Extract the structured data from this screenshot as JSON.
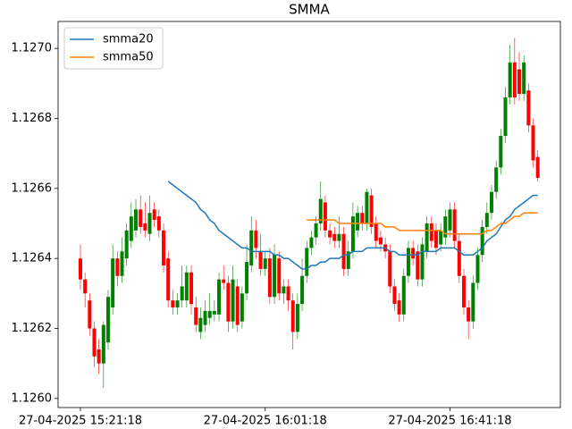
{
  "chart_data": {
    "type": "candlestick",
    "title": "SMMA",
    "up_color": "#008000",
    "down_color": "#ff0000",
    "legend": "upper left",
    "x": [
      "27-04-2025 15:21:18",
      "27-04-2025 15:22:18",
      "27-04-2025 15:23:18",
      "27-04-2025 15:24:18",
      "27-04-2025 15:25:18",
      "27-04-2025 15:26:18",
      "27-04-2025 15:27:18",
      "27-04-2025 15:28:18",
      "27-04-2025 15:29:18",
      "27-04-2025 15:30:18",
      "27-04-2025 15:31:18",
      "27-04-2025 15:32:18",
      "27-04-2025 15:33:18",
      "27-04-2025 15:34:18",
      "27-04-2025 15:35:18",
      "27-04-2025 15:36:18",
      "27-04-2025 15:37:18",
      "27-04-2025 15:38:18",
      "27-04-2025 15:39:18",
      "27-04-2025 15:40:18",
      "27-04-2025 15:41:18",
      "27-04-2025 15:42:18",
      "27-04-2025 15:43:18",
      "27-04-2025 15:44:18",
      "27-04-2025 15:45:18",
      "27-04-2025 15:46:18",
      "27-04-2025 15:47:18",
      "27-04-2025 15:48:18",
      "27-04-2025 15:49:18",
      "27-04-2025 15:50:18",
      "27-04-2025 15:51:18",
      "27-04-2025 15:52:18",
      "27-04-2025 15:53:18",
      "27-04-2025 15:54:18",
      "27-04-2025 15:55:18",
      "27-04-2025 15:56:18",
      "27-04-2025 15:57:18",
      "27-04-2025 15:58:18",
      "27-04-2025 15:59:18",
      "27-04-2025 16:00:18",
      "27-04-2025 16:01:18",
      "27-04-2025 16:02:18",
      "27-04-2025 16:03:18",
      "27-04-2025 16:04:18",
      "27-04-2025 16:05:18",
      "27-04-2025 16:06:18",
      "27-04-2025 16:07:18",
      "27-04-2025 16:08:18",
      "27-04-2025 16:09:18",
      "27-04-2025 16:10:18",
      "27-04-2025 16:11:18",
      "27-04-2025 16:12:18",
      "27-04-2025 16:13:18",
      "27-04-2025 16:14:18",
      "27-04-2025 16:15:18",
      "27-04-2025 16:16:18",
      "27-04-2025 16:17:18",
      "27-04-2025 16:18:18",
      "27-04-2025 16:19:18",
      "27-04-2025 16:20:18",
      "27-04-2025 16:21:18",
      "27-04-2025 16:22:18",
      "27-04-2025 16:23:18",
      "27-04-2025 16:24:18",
      "27-04-2025 16:25:18",
      "27-04-2025 16:26:18",
      "27-04-2025 16:27:18",
      "27-04-2025 16:28:18",
      "27-04-2025 16:29:18",
      "27-04-2025 16:30:18",
      "27-04-2025 16:31:18",
      "27-04-2025 16:32:18",
      "27-04-2025 16:33:18",
      "27-04-2025 16:34:18",
      "27-04-2025 16:35:18",
      "27-04-2025 16:36:18",
      "27-04-2025 16:37:18",
      "27-04-2025 16:38:18",
      "27-04-2025 16:39:18",
      "27-04-2025 16:40:18",
      "27-04-2025 16:41:18",
      "27-04-2025 16:42:18",
      "27-04-2025 16:43:18",
      "27-04-2025 16:44:18",
      "27-04-2025 16:45:18",
      "27-04-2025 16:46:18",
      "27-04-2025 16:47:18",
      "27-04-2025 16:48:18",
      "27-04-2025 16:49:18",
      "27-04-2025 16:50:18",
      "27-04-2025 16:51:18",
      "27-04-2025 16:52:18",
      "27-04-2025 16:53:18",
      "27-04-2025 16:54:18",
      "27-04-2025 16:55:18",
      "27-04-2025 16:56:18",
      "27-04-2025 16:57:18",
      "27-04-2025 16:58:18",
      "27-04-2025 16:59:18",
      "27-04-2025 17:00:18"
    ],
    "open": [
      1.1264,
      1.12634,
      1.12628,
      1.1262,
      1.12614,
      1.1261,
      1.12616,
      1.12626,
      1.1264,
      1.12635,
      1.1264,
      1.12645,
      1.12648,
      1.12654,
      1.1265,
      1.12647,
      1.12654,
      1.12652,
      1.12648,
      1.1264,
      1.12628,
      1.12626,
      1.12628,
      1.12628,
      1.12636,
      1.12626,
      1.12619,
      1.12621,
      1.12623,
      1.12624,
      1.12624,
      1.12634,
      1.12633,
      1.12622,
      1.12632,
      1.12622,
      1.1263,
      1.12638,
      1.12648,
      1.12642,
      1.12637,
      1.1264,
      1.12629,
      1.1264,
      1.1263,
      1.12632,
      1.12628,
      1.12619,
      1.12627,
      1.12635,
      1.12643,
      1.12646,
      1.1265,
      1.12656,
      1.12648,
      1.12647,
      1.12645,
      1.12647,
      1.12637,
      1.12642,
      1.12648,
      1.12653,
      1.1265,
      1.12658,
      1.1265,
      1.12646,
      1.12644,
      1.12642,
      1.12632,
      1.12628,
      1.12624,
      1.12635,
      1.12643,
      1.12642,
      1.12634,
      1.12642,
      1.1265,
      1.12648,
      1.12644,
      1.12646,
      1.12648,
      1.12654,
      1.12645,
      1.12635,
      1.12626,
      1.12622,
      1.12633,
      1.12641,
      1.12649,
      1.12653,
      1.12659,
      1.12666,
      1.12675,
      1.12686,
      1.12696,
      1.12694,
      1.12687,
      1.12688,
      1.12678,
      1.12669
    ],
    "high": [
      1.12644,
      1.12636,
      1.1263,
      1.12622,
      1.12617,
      1.12622,
      1.12631,
      1.12644,
      1.12642,
      1.12646,
      1.1265,
      1.12656,
      1.12657,
      1.12658,
      1.12656,
      1.12658,
      1.12656,
      1.12654,
      1.1265,
      1.12642,
      1.12631,
      1.1263,
      1.12638,
      1.12638,
      1.12638,
      1.12629,
      1.12626,
      1.12628,
      1.1263,
      1.12628,
      1.12636,
      1.12638,
      1.12635,
      1.12638,
      1.12634,
      1.12632,
      1.12644,
      1.12652,
      1.12651,
      1.12647,
      1.12642,
      1.12643,
      1.12644,
      1.12642,
      1.12634,
      1.12634,
      1.1263,
      1.1263,
      1.1264,
      1.12645,
      1.12648,
      1.12652,
      1.12662,
      1.12658,
      1.1265,
      1.12649,
      1.12652,
      1.12649,
      1.12645,
      1.12656,
      1.12655,
      1.12655,
      1.1266,
      1.1266,
      1.12652,
      1.12648,
      1.12646,
      1.12644,
      1.12634,
      1.1263,
      1.12637,
      1.12645,
      1.12645,
      1.12644,
      1.12646,
      1.12652,
      1.12652,
      1.1265,
      1.1265,
      1.12654,
      1.12656,
      1.12656,
      1.12647,
      1.12637,
      1.12628,
      1.12635,
      1.12643,
      1.12651,
      1.12656,
      1.12661,
      1.12668,
      1.12677,
      1.12689,
      1.12701,
      1.12703,
      1.12699,
      1.12698,
      1.1269,
      1.1268,
      1.12671
    ],
    "low": [
      1.12631,
      1.12626,
      1.12618,
      1.12609,
      1.12607,
      1.12603,
      1.12614,
      1.12624,
      1.12632,
      1.12633,
      1.12638,
      1.12643,
      1.12646,
      1.12647,
      1.12646,
      1.12645,
      1.12649,
      1.12646,
      1.12636,
      1.12626,
      1.12624,
      1.12624,
      1.12626,
      1.12626,
      1.12624,
      1.12619,
      1.12617,
      1.12619,
      1.12621,
      1.12622,
      1.12622,
      1.12631,
      1.12619,
      1.1262,
      1.12619,
      1.1262,
      1.12628,
      1.12636,
      1.1264,
      1.12635,
      1.12635,
      1.12627,
      1.12627,
      1.12628,
      1.12627,
      1.12625,
      1.12614,
      1.12617,
      1.12625,
      1.12633,
      1.12641,
      1.12644,
      1.12648,
      1.12646,
      1.12644,
      1.12643,
      1.12643,
      1.12635,
      1.12635,
      1.1264,
      1.12646,
      1.12648,
      1.12648,
      1.12647,
      1.12643,
      1.12642,
      1.1264,
      1.1263,
      1.12625,
      1.12622,
      1.12622,
      1.12633,
      1.12638,
      1.12632,
      1.12632,
      1.1264,
      1.12643,
      1.12641,
      1.12642,
      1.12644,
      1.12646,
      1.12643,
      1.12633,
      1.12624,
      1.12617,
      1.1262,
      1.12631,
      1.12639,
      1.12647,
      1.12651,
      1.12657,
      1.12664,
      1.12673,
      1.12684,
      1.12684,
      1.12685,
      1.12685,
      1.12676,
      1.12666,
      1.12662
    ],
    "close": [
      1.12634,
      1.1263,
      1.1262,
      1.12612,
      1.1261,
      1.12621,
      1.12629,
      1.1264,
      1.12635,
      1.12642,
      1.12648,
      1.12652,
      1.12654,
      1.12649,
      1.12648,
      1.12653,
      1.12651,
      1.12648,
      1.12638,
      1.12628,
      1.12626,
      1.12628,
      1.12632,
      1.12636,
      1.12627,
      1.12621,
      1.12623,
      1.12625,
      1.12625,
      1.12625,
      1.12634,
      1.12633,
      1.12622,
      1.12634,
      1.12621,
      1.1263,
      1.12639,
      1.12648,
      1.12643,
      1.12637,
      1.1264,
      1.12629,
      1.12641,
      1.1263,
      1.12632,
      1.12628,
      1.12619,
      1.12627,
      1.12635,
      1.12643,
      1.12646,
      1.1265,
      1.12657,
      1.12648,
      1.12646,
      1.12645,
      1.12647,
      1.12637,
      1.12642,
      1.12652,
      1.12653,
      1.1265,
      1.12659,
      1.12649,
      1.12645,
      1.12644,
      1.12642,
      1.12632,
      1.12627,
      1.12624,
      1.12635,
      1.12643,
      1.1264,
      1.12634,
      1.12644,
      1.1265,
      1.12645,
      1.12643,
      1.12648,
      1.12652,
      1.12654,
      1.12645,
      1.12635,
      1.12626,
      1.12622,
      1.12633,
      1.12641,
      1.12649,
      1.12653,
      1.12659,
      1.12666,
      1.12675,
      1.12686,
      1.12696,
      1.12686,
      1.12687,
      1.12696,
      1.12678,
      1.12668,
      1.12663
    ],
    "series": [
      {
        "name": "smma20",
        "color": "#1f77b4",
        "values": [
          null,
          null,
          null,
          null,
          null,
          null,
          null,
          null,
          null,
          null,
          null,
          null,
          null,
          null,
          null,
          null,
          null,
          null,
          null,
          1.12662,
          1.12661,
          1.1266,
          1.12659,
          1.12658,
          1.12657,
          1.12656,
          1.12654,
          1.12653,
          1.12651,
          1.1265,
          1.12648,
          1.12647,
          1.12646,
          1.12645,
          1.12644,
          1.12643,
          1.12643,
          1.12642,
          1.12642,
          1.12642,
          1.12642,
          1.12642,
          1.12641,
          1.12641,
          1.1264,
          1.1264,
          1.12639,
          1.12638,
          1.12637,
          1.12637,
          1.12638,
          1.12638,
          1.12639,
          1.12639,
          1.1264,
          1.1264,
          1.1264,
          1.12641,
          1.12641,
          1.12642,
          1.12642,
          1.12642,
          1.12643,
          1.12643,
          1.12643,
          1.12643,
          1.12643,
          1.12642,
          1.12642,
          1.12641,
          1.12641,
          1.12641,
          1.12641,
          1.12641,
          1.12642,
          1.12642,
          1.12642,
          1.12642,
          1.12643,
          1.12643,
          1.12643,
          1.12643,
          1.12642,
          1.12641,
          1.12641,
          1.12641,
          1.12642,
          1.12643,
          1.12645,
          1.12646,
          1.12647,
          1.12649,
          1.12651,
          1.12652,
          1.12654,
          1.12655,
          1.12656,
          1.12657,
          1.12658,
          1.12658
        ]
      },
      {
        "name": "smma50",
        "color": "#ff7f0e",
        "values": [
          null,
          null,
          null,
          null,
          null,
          null,
          null,
          null,
          null,
          null,
          null,
          null,
          null,
          null,
          null,
          null,
          null,
          null,
          null,
          null,
          null,
          null,
          null,
          null,
          null,
          null,
          null,
          null,
          null,
          null,
          null,
          null,
          null,
          null,
          null,
          null,
          null,
          null,
          null,
          null,
          null,
          null,
          null,
          null,
          null,
          null,
          null,
          null,
          null,
          1.12651,
          1.12651,
          1.12651,
          1.12651,
          1.12651,
          1.12651,
          1.12651,
          1.1265,
          1.1265,
          1.1265,
          1.1265,
          1.1265,
          1.1265,
          1.1265,
          1.1265,
          1.1265,
          1.1265,
          1.12649,
          1.12649,
          1.12649,
          1.12648,
          1.12648,
          1.12648,
          1.12648,
          1.12648,
          1.12648,
          1.12648,
          1.12648,
          1.12648,
          1.12648,
          1.12647,
          1.12647,
          1.12647,
          1.12647,
          1.12647,
          1.12647,
          1.12647,
          1.12647,
          1.12647,
          1.12648,
          1.12648,
          1.12649,
          1.1265,
          1.1265,
          1.12651,
          1.12652,
          1.12652,
          1.12653,
          1.12653,
          1.12653,
          1.12653
        ]
      }
    ],
    "xlim": [
      "27-04-2025 15:16:28",
      "27-04-2025 17:05:12"
    ],
    "xticks": [
      "27-04-2025 15:21:18",
      "27-04-2025 16:01:18",
      "27-04-2025 16:41:18"
    ],
    "ylim": [
      1.125974,
      1.127077
    ],
    "yticks": [
      {
        "value": 1.126,
        "label": "1.1260"
      },
      1.1262,
      1.1264,
      1.1266,
      1.1268,
      {
        "value": 1.127,
        "label": "1.1270"
      }
    ]
  }
}
